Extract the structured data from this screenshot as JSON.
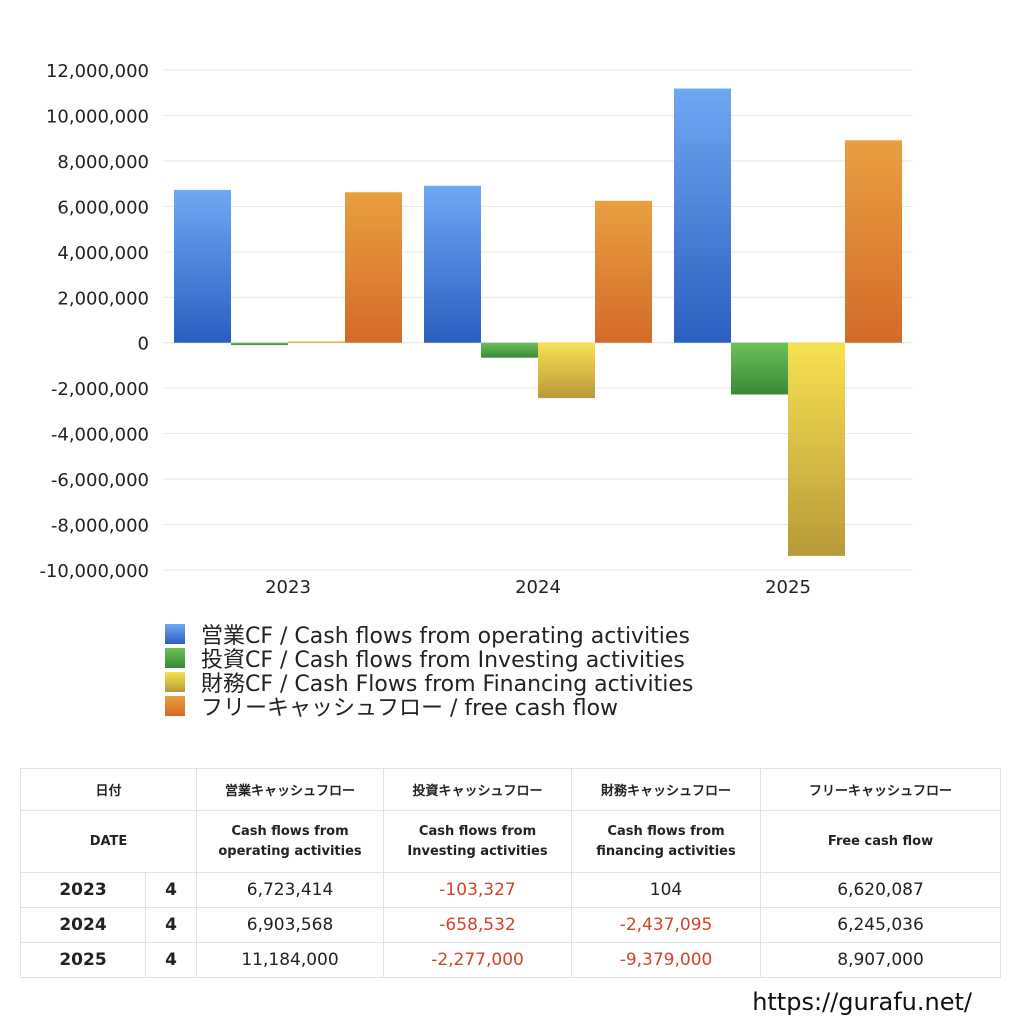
{
  "chart_data": {
    "type": "bar",
    "categories": [
      "2023",
      "2024",
      "2025"
    ],
    "ylim": [
      -10000000,
      12000000
    ],
    "yticks": [
      12000000,
      10000000,
      8000000,
      6000000,
      4000000,
      2000000,
      0,
      -2000000,
      -4000000,
      -6000000,
      -8000000,
      -10000000
    ],
    "ytick_labels": [
      "12,000,000",
      "10,000,000",
      "8,000,000",
      "6,000,000",
      "4,000,000",
      "2,000,000",
      "0",
      "-2,000,000",
      "-4,000,000",
      "-6,000,000",
      "-8,000,000",
      "-10,000,000"
    ],
    "grid": true,
    "legend_position": "bottom",
    "series": [
      {
        "name": "営業CF / Cash flows from operating activities",
        "values": [
          6723414,
          6903568,
          11184000
        ],
        "color_top": "#6ea8f2",
        "color_bottom": "#2a5fc0"
      },
      {
        "name": "投資CF / Cash flows from Investing activities",
        "values": [
          -103327,
          -658532,
          -2277000
        ],
        "color_top": "#6cbf5a",
        "color_bottom": "#3a8a36"
      },
      {
        "name": "財務CF / Cash Flows from Financing activities",
        "values": [
          104,
          -2437095,
          -9379000
        ],
        "color_top": "#f7e150",
        "color_bottom": "#b89a3a"
      },
      {
        "name": "フリーキャッシュフロー / free cash flow",
        "values": [
          6620087,
          6245036,
          8907000
        ],
        "color_top": "#e8a040",
        "color_bottom": "#d46a2a"
      }
    ]
  },
  "table": {
    "headers_jp": [
      "日付",
      "営業キャッシュフロー",
      "投資キャッシュフロー",
      "財務キャッシュフロー",
      "フリーキャッシュフロー"
    ],
    "headers_en": {
      "date": "DATE",
      "operating": [
        "Cash flows from",
        "operating activities"
      ],
      "investing": [
        "Cash flows from",
        "Investing activities"
      ],
      "financing": [
        "Cash flows from",
        "financing activities"
      ],
      "free": "Free cash flow"
    },
    "rows": [
      {
        "year": "2023",
        "month": "4",
        "operating": "6,723,414",
        "investing": "-103,327",
        "financing": "104",
        "free": "6,620,087"
      },
      {
        "year": "2024",
        "month": "4",
        "operating": "6,903,568",
        "investing": "-658,532",
        "financing": "-2,437,095",
        "free": "6,245,036"
      },
      {
        "year": "2025",
        "month": "4",
        "operating": "11,184,000",
        "investing": "-2,277,000",
        "financing": "-9,379,000",
        "free": "8,907,000"
      }
    ]
  },
  "footer": {
    "site": "https://gurafu.net/"
  }
}
